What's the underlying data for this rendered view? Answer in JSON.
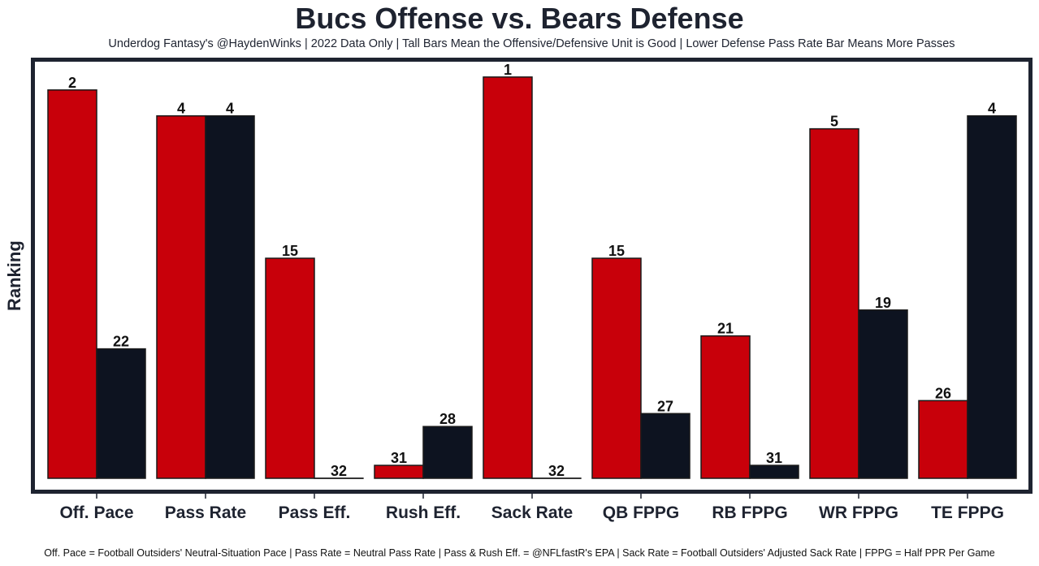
{
  "chart_data": {
    "type": "bar",
    "title": "Bucs Offense vs. Bears Defense",
    "subtitle": "Underdog Fantasy's @HaydenWinks | 2022 Data Only | Tall Bars Mean the Offensive/Defensive Unit is Good | Lower Defense Pass Rate Bar Means More Passes",
    "xlabel": "",
    "ylabel": "Ranking",
    "footnote": "Off. Pace = Football Outsiders' Neutral-Situation Pace | Pass Rate = Neutral Pass Rate | Pass & Rush Eff. = @NFLfastR's EPA | Sack Rate = Football Outsiders' Adjusted Sack Rate | FPPG = Half PPR Per Game",
    "categories": [
      "Off. Pace",
      "Pass Rate",
      "Pass Eff.",
      "Rush Eff.",
      "Sack Rate",
      "QB FPPG",
      "RB FPPG",
      "WR FPPG",
      "TE FPPG"
    ],
    "series": [
      {
        "name": "Bucs Offense",
        "color": "#c8000a",
        "values": [
          2,
          4,
          15,
          31,
          1,
          15,
          21,
          5,
          26
        ]
      },
      {
        "name": "Bears Defense",
        "color": "#0d1320",
        "values": [
          22,
          4,
          32,
          28,
          32,
          27,
          31,
          19,
          4
        ]
      }
    ],
    "rank_range": [
      1,
      32
    ],
    "bar_height_rule": "taller bar = better rank (bar height proportional to 32 minus rank)",
    "grid": false,
    "legend": "none",
    "frame_color": "#1e2330"
  }
}
